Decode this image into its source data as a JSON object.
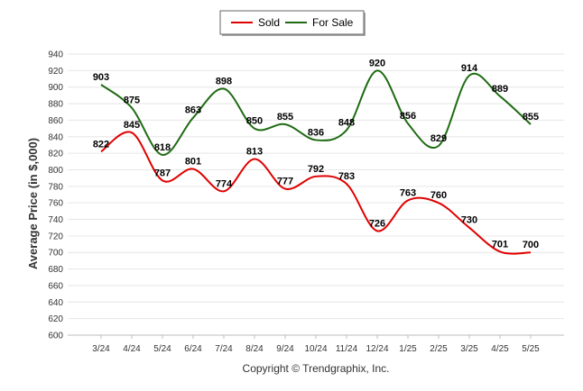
{
  "chart_data": {
    "type": "line",
    "title": "",
    "xlabel": "",
    "ylabel": "Average Price (in $,000)",
    "categories": [
      "3/24",
      "4/24",
      "5/24",
      "6/24",
      "7/24",
      "8/24",
      "9/24",
      "10/24",
      "11/24",
      "12/24",
      "1/25",
      "2/25",
      "3/25",
      "4/25",
      "5/25"
    ],
    "series": [
      {
        "name": "Sold",
        "color": "#e00000",
        "values": [
          822,
          845,
          787,
          801,
          774,
          813,
          777,
          792,
          783,
          726,
          763,
          760,
          730,
          701,
          700
        ]
      },
      {
        "name": "For Sale",
        "color": "#1e6b12",
        "values": [
          903,
          875,
          818,
          863,
          898,
          850,
          855,
          836,
          848,
          920,
          856,
          829,
          914,
          889,
          855
        ]
      }
    ],
    "ylim": [
      600,
      940
    ],
    "yticks": [
      600,
      620,
      640,
      660,
      680,
      700,
      720,
      740,
      760,
      780,
      800,
      820,
      840,
      860,
      880,
      900,
      920,
      940
    ],
    "grid": true,
    "legend": "top-center"
  },
  "footer": {
    "copyright": "Copyright © Trendgraphix, Inc."
  }
}
